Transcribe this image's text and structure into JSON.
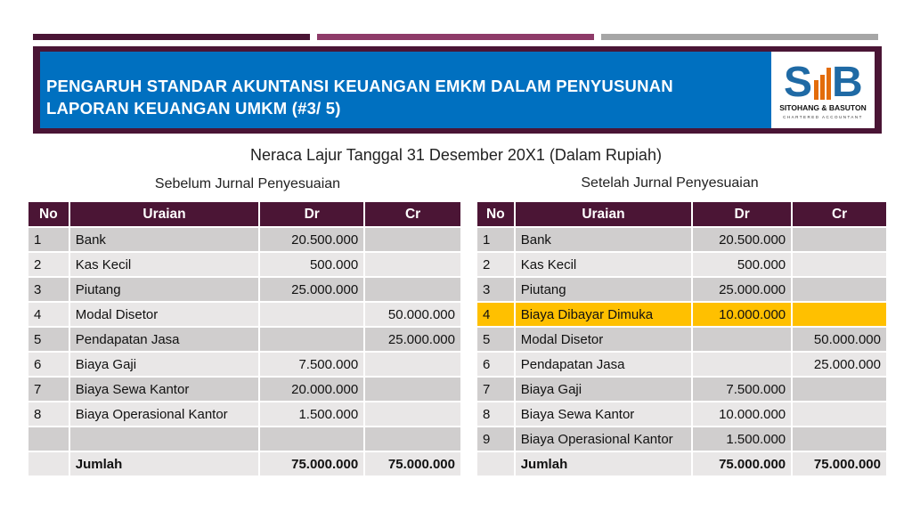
{
  "header": {
    "title_line1": "PENGARUH STANDAR AKUNTANSI KEUANGAN EMKM DALAM PENYUSUNAN",
    "title_line2": "LAPORAN KEUANGAN UMKM (#3/ 5)",
    "logo_name": "SITOHANG & BASUTON",
    "logo_sub": "CHARTERED ACCOUNTANT",
    "logo_mark": "SB"
  },
  "colors": {
    "header_bg": "#4a1535",
    "blue": "#0070c0",
    "highlight": "#ffc000",
    "bar1": "#4a1535",
    "bar2": "#8e3b69",
    "bar3": "#a6a6a6"
  },
  "main_title": "Neraca Lajur Tanggal 31 Desember 20X1 (Dalam Rupiah)",
  "columns": [
    "No",
    "Uraian",
    "Dr",
    "Cr"
  ],
  "left": {
    "subtitle": "Sebelum Jurnal Penyesuaian",
    "rows": [
      [
        "1",
        "Bank",
        "20.500.000",
        ""
      ],
      [
        "2",
        "Kas Kecil",
        "500.000",
        ""
      ],
      [
        "3",
        "Piutang",
        "25.000.000",
        ""
      ],
      [
        "4",
        "Modal Disetor",
        "",
        "50.000.000"
      ],
      [
        "5",
        "Pendapatan Jasa",
        "",
        "25.000.000"
      ],
      [
        "6",
        "Biaya Gaji",
        "7.500.000",
        ""
      ],
      [
        "7",
        "Biaya Sewa Kantor",
        "20.000.000",
        ""
      ],
      [
        "8",
        "Biaya Operasional Kantor",
        "1.500.000",
        ""
      ],
      [
        "",
        "",
        "",
        ""
      ],
      [
        "",
        "Jumlah",
        "75.000.000",
        "75.000.000"
      ]
    ]
  },
  "right": {
    "subtitle": "Setelah Jurnal Penyesuaian",
    "highlight_row": 3,
    "rows": [
      [
        "1",
        "Bank",
        "20.500.000",
        ""
      ],
      [
        "2",
        "Kas Kecil",
        "500.000",
        ""
      ],
      [
        "3",
        "Piutang",
        "25.000.000",
        ""
      ],
      [
        "4",
        "Biaya Dibayar Dimuka",
        "10.000.000",
        ""
      ],
      [
        "5",
        "Modal Disetor",
        "",
        "50.000.000"
      ],
      [
        "6",
        "Pendapatan Jasa",
        "",
        "25.000.000"
      ],
      [
        "7",
        "Biaya Gaji",
        "7.500.000",
        ""
      ],
      [
        "8",
        "Biaya Sewa Kantor",
        "10.000.000",
        ""
      ],
      [
        "9",
        "Biaya Operasional Kantor",
        "1.500.000",
        ""
      ],
      [
        "",
        "Jumlah",
        "75.000.000",
        "75.000.000"
      ]
    ]
  }
}
